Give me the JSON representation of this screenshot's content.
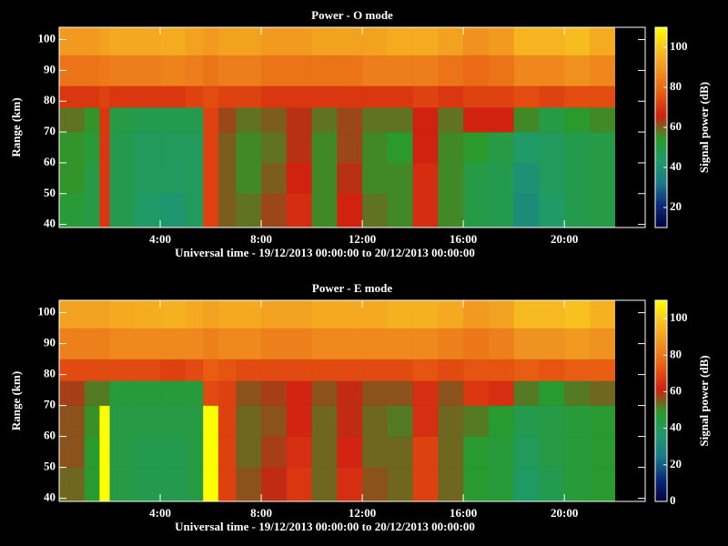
{
  "chart_data": [
    {
      "type": "heatmap",
      "title": "Power - O mode",
      "xlabel": "Universal time - 19/12/2013 00:00:00 to 20/12/2013 00:00:00",
      "ylabel": "Range (km)",
      "colorbar_label": "Signal power (dB)",
      "xlim": [
        0,
        23.2
      ],
      "ylim": [
        39,
        104
      ],
      "zlim": [
        10,
        110
      ],
      "xticks": [
        {
          "value": 4,
          "label": "4:00"
        },
        {
          "value": 8,
          "label": "8:00"
        },
        {
          "value": 12,
          "label": "12:00"
        },
        {
          "value": 16,
          "label": "16:00"
        },
        {
          "value": 20,
          "label": "20:00"
        }
      ],
      "yticks": [
        40,
        50,
        60,
        70,
        80,
        90,
        100
      ],
      "zticks": [
        20,
        40,
        60,
        80,
        100
      ],
      "colormap": [
        "#000040",
        "#0a2a7a",
        "#1a7a8a",
        "#1f9a6a",
        "#2a9a2a",
        "#d02010",
        "#e85a10",
        "#f09020",
        "#f8c020",
        "#ffff00"
      ],
      "x_edges": [
        0,
        1,
        1.6,
        2,
        3,
        4,
        5,
        5.7,
        6.3,
        7,
        8,
        9,
        10,
        11,
        12,
        13,
        14,
        15,
        16,
        17,
        18,
        19,
        20,
        21,
        22
      ],
      "y_edges": [
        39,
        50,
        60,
        70,
        78,
        85,
        95,
        104
      ],
      "values": [
        [
          52,
          55,
          55,
          58,
          70,
          82,
          90
        ],
        [
          50,
          50,
          52,
          55,
          70,
          82,
          90
        ],
        [
          70,
          70,
          70,
          70,
          72,
          83,
          92
        ],
        [
          48,
          48,
          48,
          50,
          70,
          84,
          93
        ],
        [
          44,
          46,
          46,
          48,
          70,
          84,
          93
        ],
        [
          42,
          45,
          46,
          48,
          70,
          85,
          94
        ],
        [
          46,
          46,
          46,
          48,
          72,
          84,
          92
        ],
        [
          72,
          72,
          72,
          72,
          74,
          82,
          90
        ],
        [
          60,
          60,
          60,
          62,
          72,
          84,
          92
        ],
        [
          58,
          56,
          56,
          58,
          72,
          84,
          92
        ],
        [
          62,
          60,
          58,
          60,
          70,
          82,
          90
        ],
        [
          68,
          66,
          64,
          64,
          70,
          82,
          90
        ],
        [
          56,
          56,
          56,
          58,
          70,
          82,
          92
        ],
        [
          66,
          64,
          62,
          62,
          70,
          82,
          92
        ],
        [
          58,
          56,
          56,
          58,
          70,
          84,
          92
        ],
        [
          56,
          56,
          54,
          58,
          70,
          84,
          94
        ],
        [
          68,
          68,
          66,
          66,
          72,
          84,
          94
        ],
        [
          56,
          56,
          56,
          58,
          70,
          82,
          92
        ],
        [
          50,
          50,
          54,
          66,
          72,
          80,
          88
        ],
        [
          48,
          48,
          50,
          66,
          72,
          82,
          90
        ],
        [
          38,
          40,
          44,
          56,
          74,
          86,
          96
        ],
        [
          44,
          46,
          46,
          50,
          72,
          86,
          96
        ],
        [
          48,
          48,
          48,
          54,
          74,
          88,
          98
        ],
        [
          50,
          50,
          50,
          56,
          74,
          86,
          94
        ]
      ]
    },
    {
      "type": "heatmap",
      "title": "Power - E mode",
      "xlabel": "Universal time - 19/12/2013 00:00:00 to 20/12/2013 00:00:00",
      "ylabel": "Range (km)",
      "colorbar_label": "Signal power (dB)",
      "xlim": [
        0,
        23.2
      ],
      "ylim": [
        39,
        104
      ],
      "zlim": [
        0,
        110
      ],
      "xticks": [
        {
          "value": 4,
          "label": "4:00"
        },
        {
          "value": 8,
          "label": "8:00"
        },
        {
          "value": 12,
          "label": "12:00"
        },
        {
          "value": 16,
          "label": "16:00"
        },
        {
          "value": 20,
          "label": "20:00"
        }
      ],
      "yticks": [
        40,
        50,
        60,
        70,
        80,
        90,
        100
      ],
      "zticks": [
        0,
        20,
        40,
        60,
        80,
        100
      ],
      "colormap": [
        "#000040",
        "#0a2a7a",
        "#1a7a8a",
        "#1f9a6a",
        "#2a9a2a",
        "#d02010",
        "#e85a10",
        "#f09020",
        "#f8c020",
        "#ffff00"
      ],
      "x_edges": [
        0,
        1,
        1.6,
        2,
        3,
        4,
        5,
        5.7,
        6.3,
        7,
        8,
        9,
        10,
        11,
        12,
        13,
        14,
        15,
        16,
        17,
        18,
        19,
        20,
        21,
        22
      ],
      "y_edges": [
        39,
        50,
        60,
        70,
        78,
        85,
        95,
        104
      ],
      "values": [
        [
          54,
          56,
          56,
          58,
          70,
          82,
          90
        ],
        [
          48,
          48,
          50,
          52,
          70,
          82,
          90
        ],
        [
          110,
          110,
          110,
          52,
          70,
          82,
          90
        ],
        [
          44,
          44,
          44,
          46,
          70,
          84,
          92
        ],
        [
          42,
          42,
          44,
          46,
          70,
          84,
          93
        ],
        [
          42,
          42,
          44,
          46,
          68,
          84,
          94
        ],
        [
          44,
          44,
          44,
          46,
          70,
          84,
          92
        ],
        [
          110,
          110,
          110,
          70,
          74,
          82,
          90
        ],
        [
          68,
          68,
          68,
          68,
          72,
          84,
          92
        ],
        [
          56,
          54,
          54,
          56,
          70,
          84,
          92
        ],
        [
          60,
          58,
          56,
          58,
          70,
          82,
          90
        ],
        [
          66,
          64,
          62,
          62,
          70,
          82,
          90
        ],
        [
          54,
          54,
          54,
          56,
          70,
          84,
          92
        ],
        [
          64,
          62,
          60,
          60,
          70,
          84,
          92
        ],
        [
          56,
          54,
          54,
          56,
          70,
          84,
          92
        ],
        [
          54,
          54,
          52,
          56,
          70,
          84,
          94
        ],
        [
          68,
          68,
          64,
          64,
          72,
          84,
          94
        ],
        [
          54,
          54,
          54,
          56,
          70,
          82,
          92
        ],
        [
          48,
          48,
          52,
          66,
          72,
          80,
          88
        ],
        [
          46,
          46,
          48,
          64,
          72,
          82,
          90
        ],
        [
          38,
          40,
          42,
          52,
          74,
          86,
          96
        ],
        [
          42,
          44,
          44,
          48,
          72,
          86,
          96
        ],
        [
          46,
          46,
          46,
          52,
          74,
          88,
          98
        ],
        [
          48,
          48,
          48,
          54,
          74,
          86,
          94
        ]
      ]
    }
  ]
}
